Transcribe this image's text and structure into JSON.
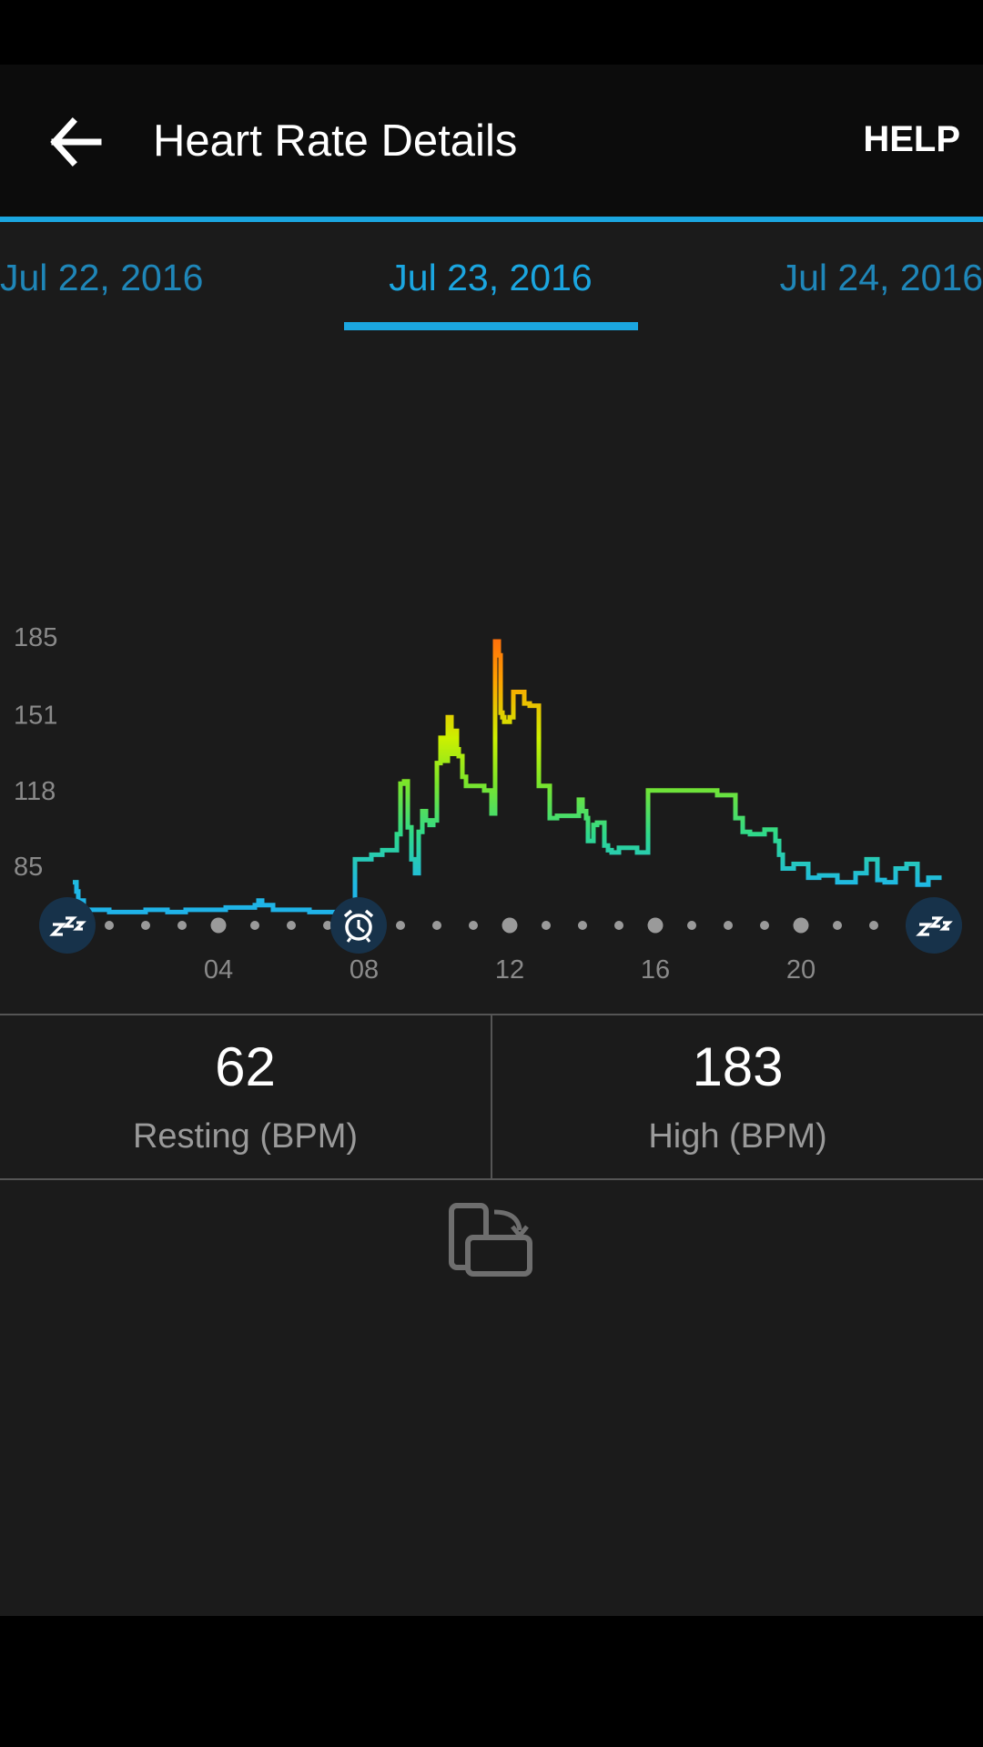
{
  "header": {
    "title": "Heart Rate Details",
    "help_label": "HELP",
    "back_icon": "arrow-left-icon"
  },
  "tabs": {
    "prev": "Jul 22, 2016",
    "current": "Jul 23, 2016",
    "next": "Jul 24, 2016"
  },
  "colors": {
    "accent": "#1ba6e0",
    "background": "#1b1b1b",
    "appbar": "#0c0c0c",
    "tab_inactive": "#1f86b8",
    "marker_badge": "#17324a"
  },
  "stats": {
    "resting": {
      "value": "62",
      "label": "Resting (BPM)"
    },
    "high": {
      "value": "183",
      "label": "High (BPM)"
    }
  },
  "icons": {
    "sleep_start": "sleep-zzz-icon",
    "wake": "alarm-clock-icon",
    "sleep_end": "sleep-zzz-icon",
    "rotate": "rotate-device-icon"
  },
  "chart_data": {
    "type": "line",
    "title": "",
    "xlabel": "",
    "ylabel": "",
    "y_ticks": [
      85,
      118,
      151,
      185
    ],
    "x_ticks": [
      "04",
      "08",
      "12",
      "16",
      "20"
    ],
    "x_range_hours": [
      0,
      24
    ],
    "y_range": [
      60,
      190
    ],
    "grid": false,
    "legend": "none",
    "markers": [
      {
        "type": "sleep",
        "hour": -0.15
      },
      {
        "type": "wake",
        "hour": 7.85
      },
      {
        "type": "sleep",
        "hour": 23.65
      }
    ],
    "series": [
      {
        "name": "",
        "x": [
          0.0,
          0.1,
          0.15,
          0.3,
          1.0,
          1.5,
          2.0,
          2.6,
          3.1,
          3.6,
          4.2,
          4.6,
          5.0,
          5.1,
          5.2,
          5.5,
          6.0,
          6.5,
          7.0,
          7.5,
          7.7,
          7.75,
          8.2,
          8.5,
          8.6,
          8.9,
          9.0,
          9.1,
          9.2,
          9.3,
          9.4,
          9.5,
          9.6,
          9.7,
          9.8,
          9.9,
          10.0,
          10.1,
          10.2,
          10.3,
          10.4,
          10.5,
          10.55,
          10.6,
          10.7,
          10.8,
          10.9,
          11.0,
          11.3,
          11.5,
          11.6,
          11.7,
          11.75,
          11.8,
          11.85,
          11.9,
          12.0,
          12.1,
          12.4,
          12.55,
          12.8,
          13.1,
          13.3,
          13.6,
          13.9,
          14.0,
          14.1,
          14.15,
          14.3,
          14.4,
          14.6,
          14.7,
          14.8,
          15.0,
          15.5,
          15.8,
          16.0,
          16.6,
          17.0,
          17.7,
          18.2,
          18.4,
          18.6,
          19.0,
          19.3,
          19.4,
          19.5,
          19.8,
          20.2,
          20.5,
          21.0,
          21.5,
          21.8,
          22.1,
          22.3,
          22.6,
          22.9,
          23.2,
          23.5,
          23.8
        ],
        "y": [
          78,
          74,
          70,
          66,
          65,
          65,
          66,
          65,
          66,
          66,
          67,
          67,
          68,
          70,
          68,
          66,
          66,
          65,
          65,
          65,
          65,
          88,
          90,
          92,
          92,
          99,
          121,
          122,
          102,
          88,
          82,
          100,
          109,
          105,
          103,
          105,
          130,
          141,
          131,
          150,
          134,
          144,
          136,
          133,
          124,
          120,
          120,
          120,
          118,
          108,
          183,
          177,
          152,
          150,
          148,
          148,
          150,
          161,
          156,
          155,
          120,
          106,
          107,
          107,
          114,
          109,
          106,
          96,
          103,
          104,
          94,
          92,
          91,
          93,
          91,
          118,
          118,
          118,
          118,
          116,
          106,
          100,
          99,
          101,
          96,
          90,
          84,
          86,
          80,
          81,
          78,
          82,
          88,
          79,
          78,
          84,
          86,
          77,
          80,
          79
        ]
      }
    ]
  }
}
